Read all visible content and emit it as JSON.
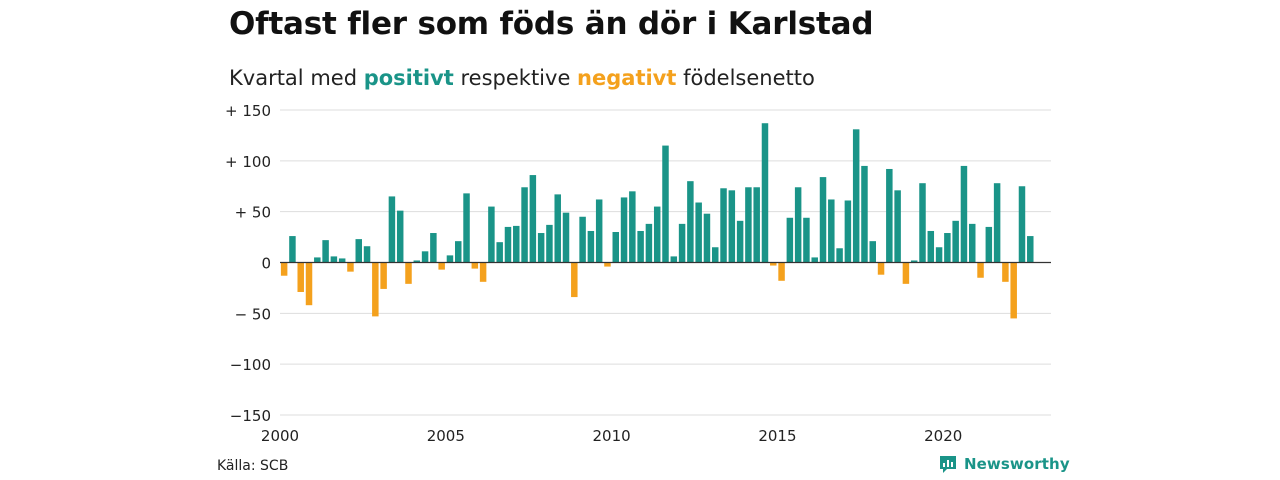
{
  "header": {
    "title": "Oftast fler som föds än dör i Karlstad",
    "subtitle_pre": "Kvartal med ",
    "subtitle_pos": "positivt",
    "subtitle_mid": " respektive ",
    "subtitle_neg": "negativt",
    "subtitle_post": " födelsenetto"
  },
  "footer": {
    "source": "Källa: SCB",
    "brand": "Newsworthy",
    "brand_icon": "newsworthy-logo-icon"
  },
  "colors": {
    "positive": "#1a9488",
    "negative": "#f4a11d",
    "grid": "#dddddd",
    "zero": "#333333"
  },
  "chart_data": {
    "type": "bar",
    "x_start": 2000,
    "x_step": "quarter",
    "xlim": [
      2000,
      2023.25
    ],
    "ylim": [
      -150,
      150
    ],
    "y_ticks": [
      150,
      100,
      50,
      0,
      -50,
      -100,
      -150
    ],
    "y_tick_labels": [
      "+ 150",
      "+ 100",
      "+  50",
      "0",
      "− 50",
      "−100",
      "−150"
    ],
    "x_ticks": [
      2000,
      2005,
      2010,
      2015,
      2020
    ],
    "x_tick_labels": [
      "2000",
      "2005",
      "2010",
      "2015",
      "2020"
    ],
    "grid": true,
    "values": [
      -13,
      26,
      -29,
      -42,
      5,
      22,
      6,
      4,
      -9,
      23,
      16,
      -53,
      -26,
      65,
      51,
      -21,
      2,
      11,
      29,
      -7,
      7,
      21,
      68,
      -6,
      -19,
      55,
      20,
      35,
      36,
      74,
      86,
      29,
      37,
      67,
      49,
      -34,
      45,
      31,
      62,
      -4,
      30,
      64,
      70,
      31,
      38,
      55,
      115,
      6,
      38,
      80,
      59,
      48,
      15,
      73,
      71,
      41,
      74,
      74,
      137,
      -3,
      -18,
      44,
      74,
      44,
      5,
      84,
      62,
      14,
      61,
      131,
      95,
      21,
      -12,
      92,
      71,
      -21,
      2,
      78,
      31,
      15,
      29,
      41,
      95,
      38,
      -15,
      35,
      78,
      -19,
      -55,
      75,
      26
    ]
  }
}
